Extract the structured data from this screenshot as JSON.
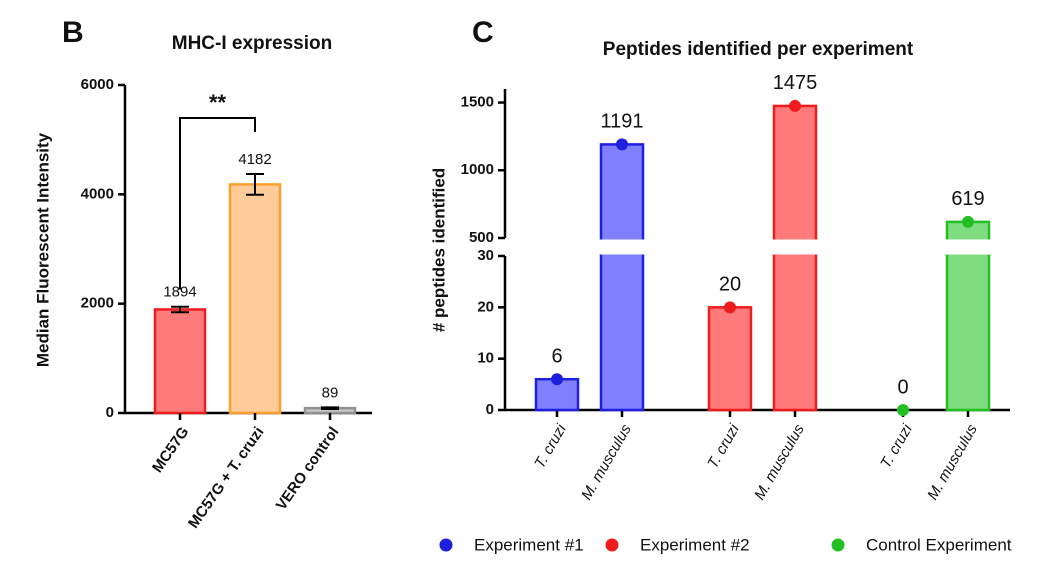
{
  "chart_data": [
    {
      "type": "bar",
      "panel": "B",
      "title": "MHC-I expression",
      "ylabel": "Median Fluorescent Intensity",
      "categories": [
        "MC57G",
        "MC57G + T. cruzi",
        "VERO control"
      ],
      "values": [
        1894,
        4182,
        89
      ],
      "errors": [
        50,
        190,
        15
      ],
      "colors": [
        "#ff7a7a",
        "#ffcc99",
        "#c8c8c8"
      ],
      "edge_colors": [
        "#ee1c1c",
        "#f7a030",
        "#909090"
      ],
      "ylim": [
        0,
        6000
      ],
      "yticks": [
        0,
        2000,
        4000,
        6000
      ],
      "annotation": "**"
    },
    {
      "type": "broken_bar",
      "panel": "C",
      "title": "Peptides identified per experiment",
      "ylabel": "# peptides identified",
      "categories": [
        "T. cruzi",
        "M. musculus",
        "T. cruzi",
        "M. musculus",
        "T. cruzi",
        "M. musculus"
      ],
      "series": [
        {
          "name": "Experiment #1",
          "color": "#1f1fe0",
          "bar_color": "#8080ff",
          "values": [
            6,
            1191,
            null,
            null,
            null,
            null
          ]
        },
        {
          "name": "Experiment #2",
          "color": "#ee1c1c",
          "bar_color": "#ff7a7a",
          "values": [
            null,
            null,
            20,
            1475,
            null,
            null
          ]
        },
        {
          "name": "Control Experiment",
          "color": "#22c022",
          "bar_color": "#7fdc7f",
          "values": [
            null,
            null,
            null,
            null,
            0,
            619
          ]
        }
      ],
      "ylim": [
        0,
        1600
      ],
      "axis_break": [
        30,
        500
      ],
      "yticks": [
        0,
        10,
        20,
        30,
        500,
        1000,
        1500
      ],
      "legend": "bottom"
    }
  ]
}
